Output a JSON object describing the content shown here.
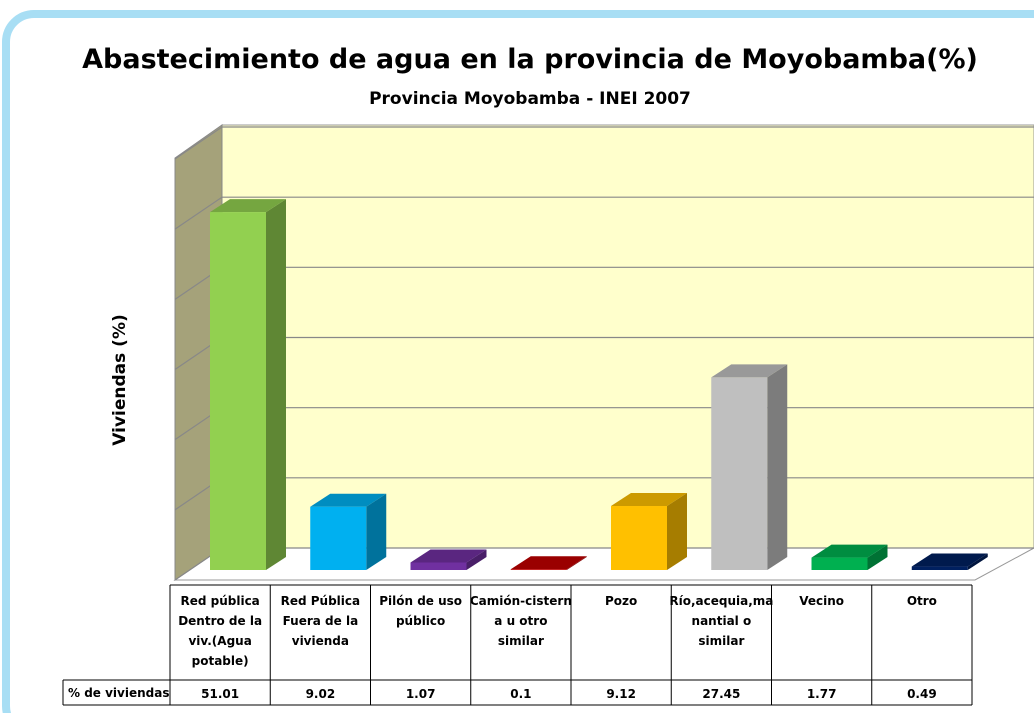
{
  "chart_data": {
    "type": "bar3d",
    "title": "Abastecimiento de agua en la provincia de Moyobamba(%)",
    "subtitle": "Provincia Moyobamba - INEI 2007",
    "y_label": "Viviendas (%)",
    "series_name": "% de viviendas",
    "categories": [
      "Red pública Dentro de la viv.(Agua potable)",
      "Red Pública Fuera de la vivienda",
      "Pilón de uso público",
      "Camión-cisterna u otro similar",
      "Pozo",
      "Río,acequia,manantial o similar",
      "Vecino",
      "Otro"
    ],
    "values": [
      51.01,
      9.02,
      1.07,
      0.1,
      9.12,
      27.45,
      1.77,
      0.49
    ],
    "colors": [
      "#92d050",
      "#00b0f0",
      "#7030a0",
      "#c00000",
      "#ffc000",
      "#bfbfbf",
      "#00b050",
      "#002060"
    ],
    "ylim": [
      0,
      60
    ],
    "yticks": [
      0,
      10,
      20,
      30,
      40,
      50,
      60
    ],
    "grid": true
  }
}
